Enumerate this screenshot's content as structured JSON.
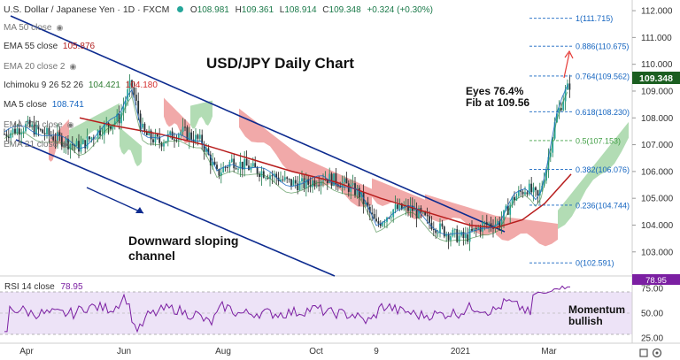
{
  "header": {
    "symbol": "U.S. Dollar / Japanese Yen · 1D · FXCM",
    "ohlc": {
      "O_label": "O",
      "O": "108.981",
      "H_label": "H",
      "H": "109.361",
      "L_label": "L",
      "L": "108.914",
      "C_label": "C",
      "C": "109.348",
      "change": "+0.324 (+0.30%)"
    }
  },
  "legend": [
    {
      "label": "MA 50 close",
      "value": "",
      "color": "#6d6d6d"
    },
    {
      "label": "EMA 55 close",
      "value": "105.876",
      "color": "#b22222"
    },
    {
      "label": "EMA 20 close 2",
      "value": "",
      "color": "#6d6d6d"
    },
    {
      "label": "Ichimoku 9 26 52 26",
      "value": "104.421",
      "value2": "104.180",
      "color": "#2e7d32",
      "color2": "#d32f2f"
    },
    {
      "label": "MA 5 close",
      "value": "108.741",
      "color": "#1565c0"
    },
    {
      "label": "EMA 200 close",
      "value": "",
      "color": "#6d6d6d"
    },
    {
      "label": "EMA 21 close",
      "value": "",
      "color": "#6d6d6d"
    }
  ],
  "annotations": {
    "title": "USD/JPY Daily Chart",
    "fib_note_line1": "Eyes 76.4%",
    "fib_note_line2": "Fib at 109.56",
    "channel_note_line1": "Downward sloping",
    "channel_note_line2": "channel",
    "momentum_line1": "Momentum",
    "momentum_line2": "bullish"
  },
  "rsi": {
    "label": "RSI 14 close",
    "value": "78.95",
    "ticks": [
      "75.00",
      "50.00",
      "25.00"
    ]
  },
  "colors": {
    "up": "#26a69a",
    "down": "#ef5350",
    "cloud_green": "#a5d6a7",
    "cloud_red": "#ef9a9a",
    "ema": "#b71c1c",
    "channel": "#0d2b8f",
    "fib": "#1565c0",
    "rsi": "#7b1fa2",
    "rsi_band": "#ede3f7"
  },
  "chart_data": {
    "type": "candlestick",
    "title": "USD/JPY Daily Chart",
    "y_ticks": [
      "112.000",
      "111.000",
      "110.000",
      "109.000",
      "108.000",
      "107.000",
      "106.000",
      "105.000",
      "104.000",
      "103.000"
    ],
    "ylim": [
      102.3,
      112.2
    ],
    "x_ticks": [
      "Apr",
      "Jun",
      "Aug",
      "Oct",
      "9",
      "2021",
      "Mar"
    ],
    "last_price": "109.348",
    "fib_levels": [
      {
        "label": "1(111.715)",
        "value": 111.715
      },
      {
        "label": "0.886(110.675)",
        "value": 110.675
      },
      {
        "label": "0.764(109.562)",
        "value": 109.562
      },
      {
        "label": "0.618(108.230)",
        "value": 108.23
      },
      {
        "label": "0.5(107.153)",
        "value": 107.153
      },
      {
        "label": "0.382(106.076)",
        "value": 106.076
      },
      {
        "label": "0.236(104.744)",
        "value": 104.744
      },
      {
        "label": "0(102.591)",
        "value": 102.591
      }
    ],
    "approx_close_path": [
      {
        "x": "Mar 2020",
        "y": 107.6
      },
      {
        "x": "Apr 2020",
        "y": 107.4
      },
      {
        "x": "May 2020",
        "y": 107.2
      },
      {
        "x": "Jun 2020",
        "y": 109.2
      },
      {
        "x": "Jul 2020",
        "y": 107.3
      },
      {
        "x": "Aug 2020",
        "y": 105.8
      },
      {
        "x": "Sep 2020",
        "y": 105.4
      },
      {
        "x": "Oct 2020",
        "y": 105.5
      },
      {
        "x": "Nov 2020",
        "y": 104.1
      },
      {
        "x": "Dec 2020",
        "y": 103.4
      },
      {
        "x": "Jan 2021",
        "y": 103.6
      },
      {
        "x": "Feb 2021",
        "y": 105.5
      },
      {
        "x": "Mar 2021",
        "y": 109.35
      }
    ]
  }
}
